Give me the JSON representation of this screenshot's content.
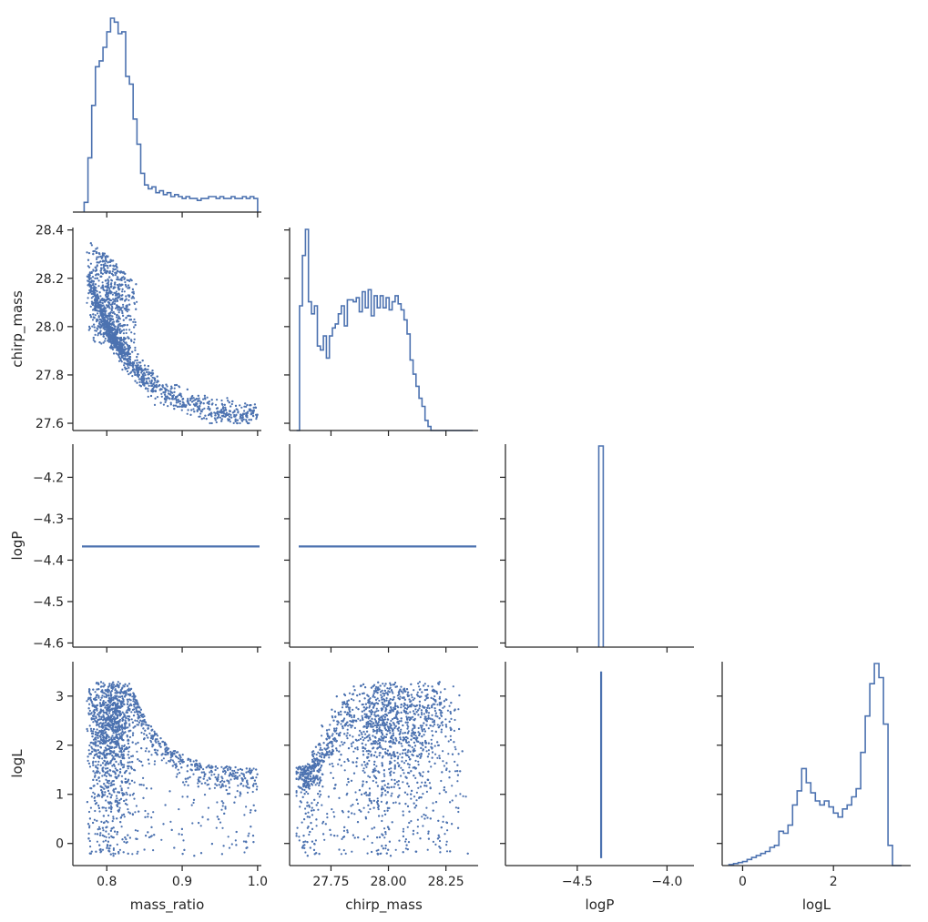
{
  "chart_data": {
    "type": "pairplot",
    "variables": [
      "mass_ratio",
      "chirp_mass",
      "logP",
      "logL"
    ],
    "color": "#4c72b0",
    "axes": {
      "mass_ratio": {
        "label": "mass_ratio",
        "lim": [
          0.755,
          1.005
        ],
        "ticks": [
          0.8,
          0.9,
          1.0
        ],
        "tick_labels": [
          "0.8",
          "0.9",
          "1.0"
        ]
      },
      "chirp_mass": {
        "label": "chirp_mass",
        "lim": [
          27.57,
          28.41
        ],
        "ticks": [
          27.6,
          27.8,
          28.0,
          28.2,
          28.4
        ],
        "tick_labels": [
          "27.6",
          "27.8",
          "28.0",
          "28.2",
          "28.4"
        ],
        "x_lim": [
          27.57,
          28.39
        ],
        "x_ticks": [
          27.75,
          28.0,
          28.25
        ],
        "x_tick_labels": [
          "27.75",
          "28.00",
          "28.25"
        ]
      },
      "logP": {
        "label": "logP",
        "lim": [
          -4.61,
          -4.12
        ],
        "ticks": [
          -4.6,
          -4.5,
          -4.4,
          -4.3,
          -4.2
        ],
        "tick_labels": [
          "−4.6",
          "−4.5",
          "−4.4",
          "−4.3",
          "−4.2"
        ],
        "x_lim": [
          -4.9,
          -3.85
        ],
        "x_ticks": [
          -4.5,
          -4.0
        ],
        "x_tick_labels": [
          "−4.5",
          "−4.0"
        ]
      },
      "logL": {
        "label": "logL",
        "lim": [
          -0.45,
          3.7
        ],
        "ticks": [
          0,
          1,
          2,
          3
        ],
        "tick_labels": [
          "0",
          "1",
          "2",
          "3"
        ],
        "x_lim": [
          -0.45,
          3.7
        ],
        "x_ticks": [
          0,
          2
        ],
        "x_tick_labels": [
          "0",
          "2"
        ]
      }
    },
    "logP_constant": -4.367,
    "histograms": {
      "mass_ratio": {
        "edges": [
          0.77,
          0.775,
          0.78,
          0.785,
          0.79,
          0.795,
          0.8,
          0.805,
          0.81,
          0.815,
          0.82,
          0.825,
          0.83,
          0.835,
          0.84,
          0.845,
          0.85,
          0.855,
          0.86,
          0.865,
          0.87,
          0.875,
          0.88,
          0.885,
          0.89,
          0.895,
          0.9,
          0.905,
          0.91,
          0.915,
          0.92,
          0.925,
          0.93,
          0.935,
          0.94,
          0.945,
          0.95,
          0.955,
          0.96,
          0.965,
          0.97,
          0.975,
          0.98,
          0.985,
          0.99,
          0.995,
          1.0
        ],
        "counts": [
          5,
          28,
          55,
          75,
          78,
          85,
          93,
          100,
          98,
          92,
          93,
          70,
          66,
          48,
          35,
          20,
          14,
          12,
          13,
          10,
          11,
          9,
          10,
          8,
          9,
          8,
          7,
          8,
          7,
          7,
          6,
          7,
          7,
          8,
          8,
          7,
          8,
          7,
          7,
          8,
          7,
          7,
          8,
          7,
          8,
          7
        ]
      },
      "chirp_mass": {
        "edges": [
          27.6,
          27.613,
          27.626,
          27.639,
          27.652,
          27.665,
          27.678,
          27.691,
          27.704,
          27.717,
          27.73,
          27.743,
          27.756,
          27.769,
          27.782,
          27.795,
          27.808,
          27.821,
          27.834,
          27.847,
          27.86,
          27.873,
          27.886,
          27.899,
          27.912,
          27.925,
          27.938,
          27.951,
          27.964,
          27.977,
          27.99,
          28.003,
          28.016,
          28.029,
          28.042,
          28.055,
          28.068,
          28.081,
          28.094,
          28.107,
          28.12,
          28.133,
          28.146,
          28.159,
          28.172,
          28.185,
          28.198,
          28.211,
          28.224,
          28.237,
          28.25,
          28.263,
          28.276,
          28.289,
          28.302,
          28.315,
          28.328,
          28.341,
          28.354,
          28.367
        ],
        "counts": [
          0,
          62,
          87,
          100,
          64,
          58,
          62,
          42,
          40,
          47,
          36,
          47,
          51,
          53,
          58,
          62,
          52,
          65,
          65,
          64,
          66,
          59,
          69,
          61,
          70,
          57,
          67,
          61,
          67,
          61,
          66,
          60,
          64,
          67,
          63,
          60,
          55,
          48,
          35,
          28,
          22,
          16,
          12,
          5,
          2,
          0,
          0,
          0,
          0,
          0,
          0,
          0,
          0,
          0,
          0,
          0,
          0,
          0,
          0
        ]
      },
      "logP": {
        "edges": [
          -4.38,
          -4.355
        ],
        "counts": [
          100
        ]
      },
      "logL": {
        "edges": [
          -0.3,
          -0.2,
          -0.1,
          0.0,
          0.1,
          0.2,
          0.3,
          0.4,
          0.5,
          0.6,
          0.7,
          0.8,
          0.9,
          1.0,
          1.1,
          1.2,
          1.3,
          1.4,
          1.5,
          1.6,
          1.7,
          1.8,
          1.9,
          2.0,
          2.1,
          2.2,
          2.3,
          2.4,
          2.5,
          2.6,
          2.7,
          2.8,
          2.9,
          3.0,
          3.1,
          3.2,
          3.3,
          3.4,
          3.5
        ],
        "counts": [
          0.5,
          1,
          1.5,
          2,
          3,
          4,
          5,
          6,
          7,
          9,
          10,
          17,
          16,
          20,
          30,
          37,
          48,
          41,
          36,
          32,
          30,
          32,
          29,
          26,
          24,
          28,
          30,
          34,
          38,
          56,
          74,
          90,
          100,
          93,
          70,
          10,
          0,
          0
        ]
      }
    },
    "scatter_hint": "dense point clouds; points generated from the depicted distributions"
  }
}
